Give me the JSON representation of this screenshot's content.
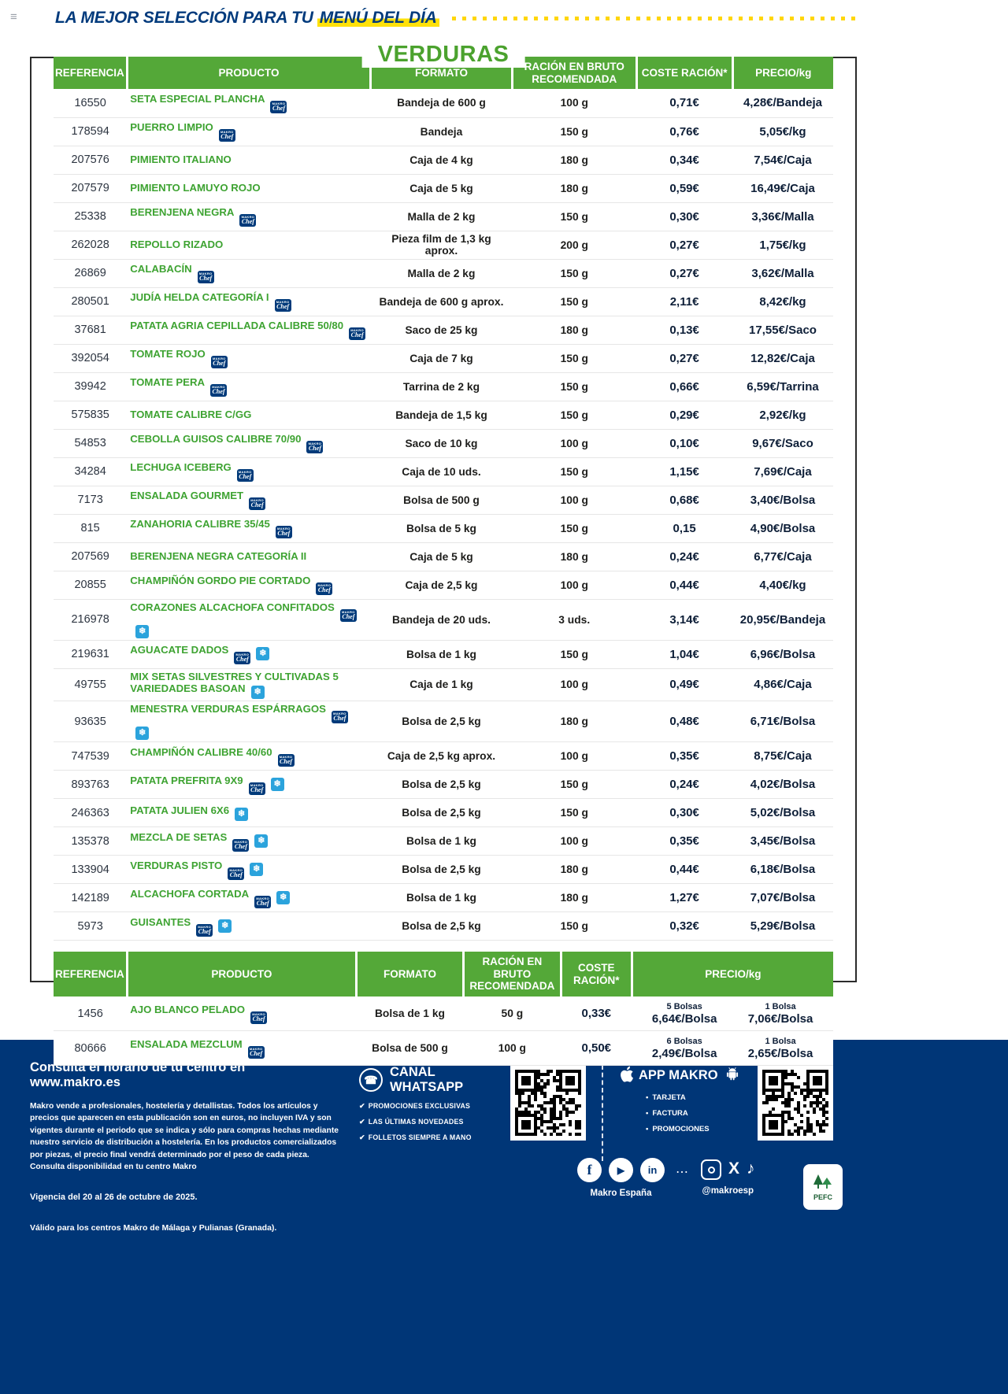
{
  "topbar": {
    "title_prefix": "LA MEJOR SELECCIÓN PARA TU",
    "title_highlight": "MENÚ DEL DÍA"
  },
  "section_title": "VERDURAS",
  "icons": {
    "hamburger": "≡",
    "phone": "☎",
    "check": "✔",
    "bullet": "•",
    "snowflake": "❄",
    "play": "▶",
    "facebook": "f",
    "linkedin": "in",
    "x": "X",
    "tiktok": "♪",
    "dots": "⋯"
  },
  "badges_def": {
    "chef": {
      "line1": "MAKRO",
      "line2": "Chef"
    },
    "frozen_glyph": "❄"
  },
  "colors": {
    "green": "#54a838",
    "navy": "#003677",
    "yellow": "#ffd60a",
    "frozen_blue": "#2ba3dc"
  },
  "table": {
    "headers": [
      "REFERENCIA",
      "PRODUCTO",
      "FORMATO",
      "RACIÓN EN BRUTO RECOMENDADA",
      "COSTE RACIÓN*",
      "PRECIO/kg"
    ],
    "rows": [
      {
        "ref": "16550",
        "producto": "SETA ESPECIAL PLANCHA",
        "badges": [
          "chef"
        ],
        "formato": "Bandeja de 600 g",
        "racion": "100 g",
        "coste": "0,71€",
        "precio": "4,28€/Bandeja"
      },
      {
        "ref": "178594",
        "producto": "PUERRO LIMPIO",
        "badges": [
          "chef"
        ],
        "formato": "Bandeja",
        "racion": "150 g",
        "coste": "0,76€",
        "precio": "5,05€/kg"
      },
      {
        "ref": "207576",
        "producto": "PIMIENTO ITALIANO",
        "badges": [],
        "formato": "Caja de 4 kg",
        "racion": "180 g",
        "coste": "0,34€",
        "precio": "7,54€/Caja"
      },
      {
        "ref": "207579",
        "producto": "PIMIENTO LAMUYO ROJO",
        "badges": [],
        "formato": "Caja de 5 kg",
        "racion": "180 g",
        "coste": "0,59€",
        "precio": "16,49€/Caja"
      },
      {
        "ref": "25338",
        "producto": "BERENJENA NEGRA",
        "badges": [
          "chef"
        ],
        "formato": "Malla de 2 kg",
        "racion": "150 g",
        "coste": "0,30€",
        "precio": "3,36€/Malla"
      },
      {
        "ref": "262028",
        "producto": "REPOLLO RIZADO",
        "badges": [],
        "formato": "Pieza film de 1,3 kg aprox.",
        "racion": "200 g",
        "coste": "0,27€",
        "precio": "1,75€/kg"
      },
      {
        "ref": "26869",
        "producto": "CALABACÍN",
        "badges": [
          "chef"
        ],
        "formato": "Malla de 2 kg",
        "racion": "150 g",
        "coste": "0,27€",
        "precio": "3,62€/Malla"
      },
      {
        "ref": "280501",
        "producto": "JUDÍA HELDA CATEGORÍA I",
        "badges": [
          "chef"
        ],
        "formato": "Bandeja de 600 g aprox.",
        "racion": "150 g",
        "coste": "2,11€",
        "precio": "8,42€/kg"
      },
      {
        "ref": "37681",
        "producto": "PATATA AGRIA CEPILLADA CALIBRE 50/80",
        "badges": [
          "chef"
        ],
        "formato": "Saco de 25 kg",
        "racion": "180 g",
        "coste": "0,13€",
        "precio": "17,55€/Saco"
      },
      {
        "ref": "392054",
        "producto": "TOMATE ROJO",
        "badges": [
          "chef"
        ],
        "formato": "Caja de 7 kg",
        "racion": "150 g",
        "coste": "0,27€",
        "precio": "12,82€/Caja"
      },
      {
        "ref": "39942",
        "producto": "TOMATE PERA",
        "badges": [
          "chef"
        ],
        "formato": "Tarrina de 2 kg",
        "racion": "150 g",
        "coste": "0,66€",
        "precio": "6,59€/Tarrina"
      },
      {
        "ref": "575835",
        "producto": "TOMATE CALIBRE C/GG",
        "badges": [],
        "formato": "Bandeja de 1,5 kg",
        "racion": "150 g",
        "coste": "0,29€",
        "precio": "2,92€/kg"
      },
      {
        "ref": "54853",
        "producto": "CEBOLLA GUISOS CALIBRE 70/90",
        "badges": [
          "chef"
        ],
        "formato": "Saco de 10 kg",
        "racion": "100 g",
        "coste": "0,10€",
        "precio": "9,67€/Saco"
      },
      {
        "ref": "34284",
        "producto": "LECHUGA ICEBERG",
        "badges": [
          "chef"
        ],
        "formato": "Caja de 10 uds.",
        "racion": "150 g",
        "coste": "1,15€",
        "precio": "7,69€/Caja"
      },
      {
        "ref": "7173",
        "producto": "ENSALADA GOURMET",
        "badges": [
          "chef"
        ],
        "formato": "Bolsa de 500 g",
        "racion": "100 g",
        "coste": "0,68€",
        "precio": "3,40€/Bolsa"
      },
      {
        "ref": "815",
        "producto": "ZANAHORIA CALIBRE 35/45",
        "badges": [
          "chef"
        ],
        "formato": "Bolsa de 5 kg",
        "racion": "150 g",
        "coste": "0,15",
        "precio": "4,90€/Bolsa"
      },
      {
        "ref": "207569",
        "producto": "BERENJENA NEGRA CATEGORÍA II",
        "badges": [],
        "formato": "Caja de 5 kg",
        "racion": "180 g",
        "coste": "0,24€",
        "precio": "6,77€/Caja"
      },
      {
        "ref": "20855",
        "producto": "CHAMPIÑÓN GORDO PIE CORTADO",
        "badges": [
          "chef"
        ],
        "formato": "Caja de 2,5 kg",
        "racion": "100 g",
        "coste": "0,44€",
        "precio": "4,40€/kg"
      },
      {
        "ref": "216978",
        "producto": "CORAZONES ALCACHOFA CONFITADOS",
        "badges": [
          "chef",
          "frozen"
        ],
        "formato": "Bandeja de 20 uds.",
        "racion": "3 uds.",
        "coste": "3,14€",
        "precio": "20,95€/Bandeja"
      },
      {
        "ref": "219631",
        "producto": "AGUACATE DADOS",
        "badges": [
          "chef",
          "frozen"
        ],
        "formato": "Bolsa de 1 kg",
        "racion": "150 g",
        "coste": "1,04€",
        "precio": "6,96€/Bolsa"
      },
      {
        "ref": "49755",
        "producto": "MIX SETAS SILVESTRES Y CULTIVADAS 5 VARIEDADES BASOAN",
        "badges": [
          "frozen"
        ],
        "formato": "Caja de 1 kg",
        "racion": "100 g",
        "coste": "0,49€",
        "precio": "4,86€/Caja"
      },
      {
        "ref": "93635",
        "producto": "MENESTRA VERDURAS ESPÁRRAGOS",
        "badges": [
          "chef",
          "frozen"
        ],
        "formato": "Bolsa de 2,5 kg",
        "racion": "180 g",
        "coste": "0,48€",
        "precio": "6,71€/Bolsa"
      },
      {
        "ref": "747539",
        "producto": "CHAMPIÑÓN CALIBRE 40/60",
        "badges": [
          "chef"
        ],
        "formato": "Caja de 2,5 kg aprox.",
        "racion": "100 g",
        "coste": "0,35€",
        "precio": "8,75€/Caja"
      },
      {
        "ref": "893763",
        "producto": "PATATA PREFRITA 9X9",
        "badges": [
          "chef",
          "frozen"
        ],
        "formato": "Bolsa de 2,5 kg",
        "racion": "150 g",
        "coste": "0,24€",
        "precio": "4,02€/Bolsa"
      },
      {
        "ref": "246363",
        "producto": "PATATA JULIEN 6X6",
        "badges": [
          "frozen"
        ],
        "formato": "Bolsa de 2,5 kg",
        "racion": "150 g",
        "coste": "0,30€",
        "precio": "5,02€/Bolsa"
      },
      {
        "ref": "135378",
        "producto": "MEZCLA DE SETAS",
        "badges": [
          "chef",
          "frozen"
        ],
        "formato": "Bolsa de 1 kg",
        "racion": "100 g",
        "coste": "0,35€",
        "precio": "3,45€/Bolsa"
      },
      {
        "ref": "133904",
        "producto": "VERDURAS PISTO",
        "badges": [
          "chef",
          "frozen"
        ],
        "formato": "Bolsa de 2,5 kg",
        "racion": "180 g",
        "coste": "0,44€",
        "precio": "6,18€/Bolsa"
      },
      {
        "ref": "142189",
        "producto": "ALCACHOFA CORTADA",
        "badges": [
          "chef",
          "frozen"
        ],
        "formato": "Bolsa de 1 kg",
        "racion": "180 g",
        "coste": "1,27€",
        "precio": "7,07€/Bolsa"
      },
      {
        "ref": "5973",
        "producto": "GUISANTES",
        "badges": [
          "chef",
          "frozen"
        ],
        "formato": "Bolsa de 2,5 kg",
        "racion": "150 g",
        "coste": "0,32€",
        "precio": "5,29€/Bolsa"
      }
    ]
  },
  "table2": {
    "headers": [
      "REFERENCIA",
      "PRODUCTO",
      "FORMATO",
      "RACIÓN EN BRUTO RECOMENDADA",
      "COSTE RACIÓN*",
      "PRECIO/kg"
    ],
    "rows": [
      {
        "ref": "1456",
        "producto": "AJO BLANCO PELADO",
        "badges": [
          "chef"
        ],
        "formato": "Bolsa de 1 kg",
        "racion": "50 g",
        "coste": "0,33€",
        "precios": [
          {
            "qty": "5 Bolsas",
            "precio": "6,64€/Bolsa"
          },
          {
            "qty": "1 Bolsa",
            "precio": "7,06€/Bolsa"
          }
        ]
      },
      {
        "ref": "80666",
        "producto": "ENSALADA MEZCLUM",
        "badges": [
          "chef"
        ],
        "formato": "Bolsa de 500 g",
        "racion": "100 g",
        "coste": "0,50€",
        "precios": [
          {
            "qty": "6 Bolsas",
            "precio": "2,49€/Bolsa"
          },
          {
            "qty": "1 Bolsa",
            "precio": "2,65€/Bolsa"
          }
        ]
      }
    ]
  },
  "footer": {
    "horario_prefix": "Consulta el horario de tu centro en ",
    "horario_link": "www.makro.es",
    "legal": "Makro vende a profesionales, hostelería y detallistas. Todos los artículos y precios que aparecen en esta publicación son en euros, no incluyen IVA y son vigentes durante el periodo que se indica y sólo para compras hechas mediante nuestro servicio de distribución a hostelería. En los productos comercializados por piezas, el precio final vendrá determinado por el peso de cada pieza. Consulta disponibilidad en tu centro Makro",
    "vigencia": "Vigencia del 20 al 26 de octubre de 2025.",
    "valido": "Válido para los centros Makro de Málaga y Pulianas (Granada).",
    "whatsapp": {
      "title": "CANAL WHATSAPP",
      "items": [
        "PROMOCIONES EXCLUSIVAS",
        "LAS ÚLTIMAS NOVEDADES",
        "FOLLETOS SIEMPRE A MANO"
      ]
    },
    "app": {
      "title": "APP MAKRO",
      "items": [
        "TARJETA",
        "FACTURA",
        "PROMOCIONES"
      ]
    },
    "social_left_label": "Makro España",
    "social_right_label": "@makroesp",
    "pefc_label": "PEFC"
  }
}
